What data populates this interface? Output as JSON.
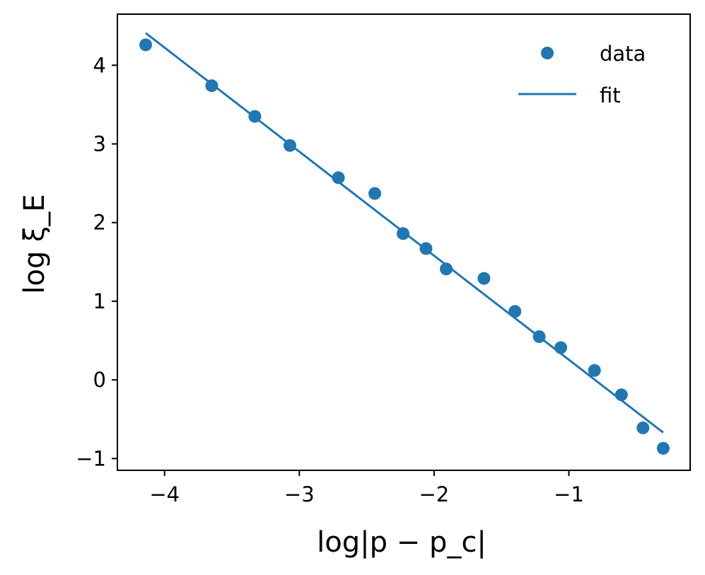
{
  "chart_data": {
    "type": "scatter",
    "xlabel": "log|p − p_c|",
    "ylabel": "log ξ_E",
    "xlim": [
      -4.35,
      -0.1
    ],
    "ylim": [
      -1.15,
      4.65
    ],
    "xticks": [
      -4,
      -3,
      -2,
      -1
    ],
    "yticks": [
      -1,
      0,
      1,
      2,
      3,
      4
    ],
    "xtick_labels": [
      "−4",
      "−3",
      "−2",
      "−1"
    ],
    "ytick_labels": [
      "−1",
      "0",
      "1",
      "2",
      "3",
      "4"
    ],
    "grid": false,
    "legend_position": "top-right",
    "color": "#1f77b4",
    "series": [
      {
        "name": "data",
        "kind": "scatter",
        "points": [
          [
            -4.14,
            4.26
          ],
          [
            -3.65,
            3.74
          ],
          [
            -3.33,
            3.35
          ],
          [
            -3.07,
            2.98
          ],
          [
            -2.71,
            2.57
          ],
          [
            -2.44,
            2.37
          ],
          [
            -2.23,
            1.86
          ],
          [
            -2.06,
            1.67
          ],
          [
            -1.91,
            1.41
          ],
          [
            -1.63,
            1.29
          ],
          [
            -1.4,
            0.87
          ],
          [
            -1.22,
            0.55
          ],
          [
            -1.06,
            0.41
          ],
          [
            -0.81,
            0.12
          ],
          [
            -0.61,
            -0.19
          ],
          [
            -0.45,
            -0.61
          ],
          [
            -0.3,
            -0.87
          ]
        ]
      },
      {
        "name": "fit",
        "kind": "line",
        "points": [
          [
            -4.14,
            4.41
          ],
          [
            -0.3,
            -0.67
          ]
        ]
      }
    ]
  }
}
